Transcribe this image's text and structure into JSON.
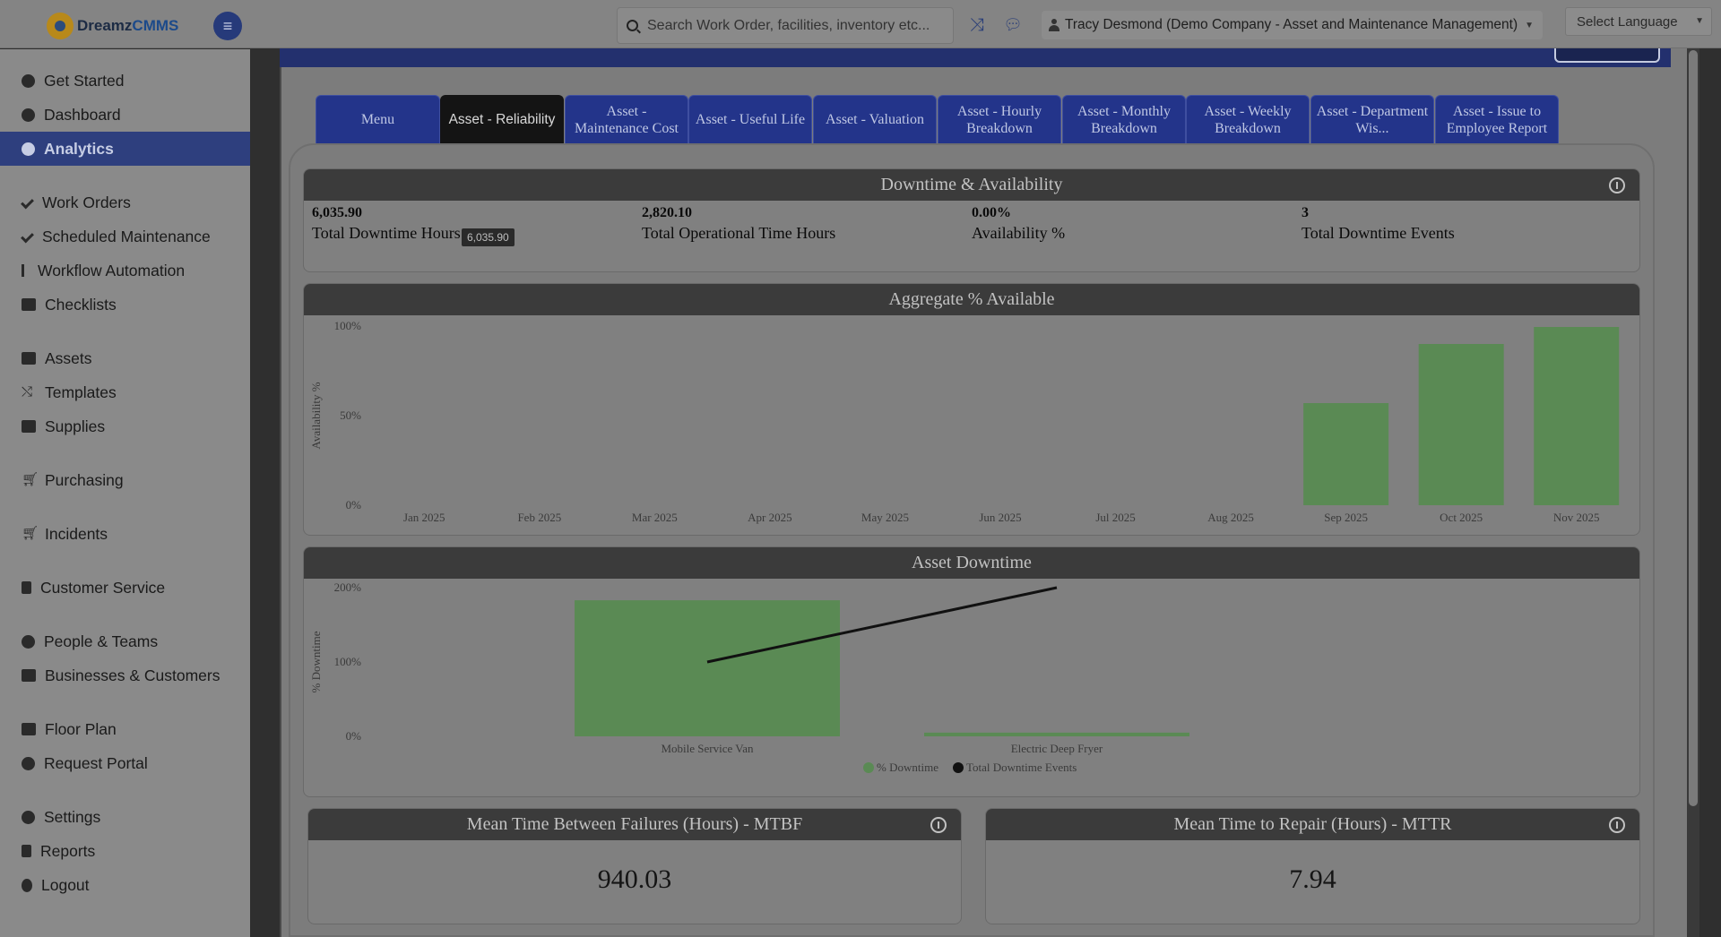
{
  "app": {
    "logo_main": "Dreamz",
    "logo_accent": "CMMS"
  },
  "header": {
    "search_placeholder": "Search Work Order, facilities, inventory etc...",
    "user_label": "Tracy Desmond (Demo Company - Asset and Maintenance Management)",
    "language_label": "Select Language"
  },
  "sidebar": {
    "items": [
      {
        "label": "Get Started",
        "icon": "gear-icon"
      },
      {
        "label": "Dashboard",
        "icon": "tachometer-icon"
      },
      {
        "label": "Analytics",
        "icon": "tachometer-icon",
        "active": true
      },
      {
        "label": "Work Orders",
        "icon": "wrench-icon"
      },
      {
        "label": "Scheduled Maintenance",
        "icon": "wrench-icon"
      },
      {
        "label": "Workflow Automation",
        "icon": "branch-icon"
      },
      {
        "label": "Checklists",
        "icon": "checkbox-icon"
      },
      {
        "label": "Assets",
        "icon": "archive-icon"
      },
      {
        "label": "Templates",
        "icon": "shuffle-icon"
      },
      {
        "label": "Supplies",
        "icon": "briefcase-icon"
      },
      {
        "label": "Purchasing",
        "icon": "cart-icon"
      },
      {
        "label": "Incidents",
        "icon": "cart-icon"
      },
      {
        "label": "Customer Service",
        "icon": "file-icon"
      },
      {
        "label": "People & Teams",
        "icon": "users-icon"
      },
      {
        "label": "Businesses & Customers",
        "icon": "video-icon"
      },
      {
        "label": "Floor Plan",
        "icon": "print-icon"
      },
      {
        "label": "Request Portal",
        "icon": "comment-icon"
      },
      {
        "label": "Settings",
        "icon": "gear-icon"
      },
      {
        "label": "Reports",
        "icon": "file-icon"
      },
      {
        "label": "Logout",
        "icon": "user-icon"
      }
    ]
  },
  "tabs": [
    {
      "label": "Menu"
    },
    {
      "label": "Asset - Reliability",
      "active": true
    },
    {
      "label": "Asset - Maintenance Cost"
    },
    {
      "label": "Asset - Useful Life"
    },
    {
      "label": "Asset - Valuation"
    },
    {
      "label": "Asset - Hourly Breakdown"
    },
    {
      "label": "Asset - Monthly Breakdown"
    },
    {
      "label": "Asset - Weekly Breakdown"
    },
    {
      "label": "Asset - Department Wis..."
    },
    {
      "label": "Asset - Issue to Employee Report"
    }
  ],
  "downtime_card": {
    "title": "Downtime & Availability",
    "metrics": [
      {
        "value": "6,035.90",
        "label": "Total Downtime Hours"
      },
      {
        "value": "2,820.10",
        "label": "Total Operational Time Hours"
      },
      {
        "value": "0.00%",
        "label": "Availability %"
      },
      {
        "value": "3",
        "label": "Total Downtime Events"
      }
    ],
    "tooltip": "6,035.90"
  },
  "aggregate_card": {
    "title": "Aggregate % Available"
  },
  "asset_downtime_card": {
    "title": "Asset Downtime"
  },
  "mtbf_card": {
    "title": "Mean Time Between Failures (Hours) - MTBF",
    "value": "940.03"
  },
  "mttr_card": {
    "title": "Mean Time to Repair (Hours) - MTTR",
    "value": "7.94"
  },
  "chart_data": [
    {
      "type": "bar",
      "title": "Aggregate % Available",
      "ylabel": "Availability %",
      "yticks": [
        "100%",
        "50%",
        "0%"
      ],
      "ylim": [
        0,
        100
      ],
      "categories": [
        "Jan 2025",
        "Feb 2025",
        "Mar 2025",
        "Apr 2025",
        "May 2025",
        "Jun 2025",
        "Jul 2025",
        "Aug 2025",
        "Sep 2025",
        "Oct 2025",
        "Nov 2025"
      ],
      "values": [
        0,
        0,
        0,
        0,
        0,
        0,
        0,
        0,
        57,
        90,
        99.5
      ],
      "color": "#5a8a54",
      "grid": false
    },
    {
      "type": "bar",
      "title": "Asset Downtime",
      "ylabel": "% Downtime",
      "yticks": [
        "200%",
        "100%",
        "0%"
      ],
      "ylim": [
        0,
        200
      ],
      "categories": [
        "Mobile Service Van",
        "Electric Deep Fryer"
      ],
      "series": [
        {
          "name": "% Downtime",
          "type": "bar",
          "values": [
            183,
            5
          ],
          "color": "#5a8a54"
        },
        {
          "name": "Total Downtime Events",
          "type": "line",
          "values": [
            100,
            200
          ],
          "color": "#111111"
        }
      ],
      "legend": "bottom",
      "grid": false
    }
  ]
}
